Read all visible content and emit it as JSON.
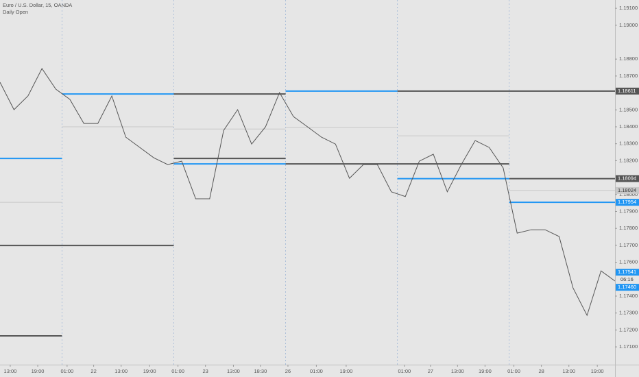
{
  "chart_data": {
    "type": "line",
    "title": "Euro / U.S. Dollar, 15, OANDA",
    "subtitle": "Daily Open",
    "x": [
      0,
      3,
      6,
      9,
      12,
      15,
      18,
      21,
      24,
      27,
      30,
      33,
      36,
      39,
      42,
      45,
      48,
      51,
      54,
      57,
      60,
      63,
      66,
      69,
      72,
      75,
      78,
      81,
      84,
      87,
      90,
      93,
      96,
      99,
      102,
      105,
      108,
      111,
      114,
      117,
      120,
      123,
      126,
      129,
      132
    ],
    "series": [
      {
        "color": "#555555",
        "values": [
          1.18663,
          1.18501,
          1.18582,
          1.18744,
          1.18622,
          1.18562,
          1.1842,
          1.1842,
          1.18582,
          1.18339,
          1.18278,
          1.18217,
          1.18177,
          1.18197,
          1.17975,
          1.17975,
          1.18379,
          1.18501,
          1.18298,
          1.184,
          1.18602,
          1.1846,
          1.184,
          1.18339,
          1.18298,
          1.18096,
          1.18177,
          1.18177,
          1.18016,
          1.17988,
          1.18197,
          1.18238,
          1.18016,
          1.18177,
          1.18319,
          1.18278,
          1.18157,
          1.17772,
          1.17792,
          1.17792,
          1.17752,
          1.17448,
          1.17286,
          1.17549,
          1.17489
        ]
      }
    ],
    "xlim": [
      0,
      132
    ],
    "ylim": [
      1.16995,
      1.19149
    ],
    "xticks": [
      {
        "value": 2.2,
        "label": "13:00"
      },
      {
        "value": 8.1,
        "label": "19:00"
      },
      {
        "value": 14.4,
        "label": "01:00"
      },
      {
        "value": 20.1,
        "label": "22"
      },
      {
        "value": 26.0,
        "label": "13:00"
      },
      {
        "value": 32.1,
        "label": "19:00"
      },
      {
        "value": 38.2,
        "label": "01:00"
      },
      {
        "value": 44.1,
        "label": "23"
      },
      {
        "value": 50.1,
        "label": "13:00"
      },
      {
        "value": 55.9,
        "label": "18:30"
      },
      {
        "value": 61.8,
        "label": "26"
      },
      {
        "value": 67.9,
        "label": "01:00"
      },
      {
        "value": 74.3,
        "label": "19:00"
      },
      {
        "value": 86.8,
        "label": "01:00"
      },
      {
        "value": 92.4,
        "label": "27"
      },
      {
        "value": 98.2,
        "label": "13:00"
      },
      {
        "value": 104.1,
        "label": "19:00"
      },
      {
        "value": 110.3,
        "label": "01:00"
      },
      {
        "value": 116.2,
        "label": "28"
      },
      {
        "value": 122.1,
        "label": "13:00"
      },
      {
        "value": 128.2,
        "label": "19:00"
      }
    ],
    "yticks": [
      {
        "value": 1.191,
        "label": "1.19100"
      },
      {
        "value": 1.19,
        "label": "1.19000"
      },
      {
        "value": 1.188,
        "label": "1.18800"
      },
      {
        "value": 1.187,
        "label": "1.18700"
      },
      {
        "value": 1.185,
        "label": "1.18500"
      },
      {
        "value": 1.184,
        "label": "1.18400"
      },
      {
        "value": 1.183,
        "label": "1.18300"
      },
      {
        "value": 1.182,
        "label": "1.18200"
      },
      {
        "value": 1.18,
        "label": "1.18000"
      },
      {
        "value": 1.179,
        "label": "1.17900"
      },
      {
        "value": 1.178,
        "label": "1.17800"
      },
      {
        "value": 1.177,
        "label": "1.17700"
      },
      {
        "value": 1.176,
        "label": "1.17600"
      },
      {
        "value": 1.174,
        "label": "1.17400"
      },
      {
        "value": 1.173,
        "label": "1.17300"
      },
      {
        "value": 1.172,
        "label": "1.17200"
      },
      {
        "value": 1.171,
        "label": "1.17100"
      }
    ],
    "session_lines": [
      13.3,
      37.3,
      61.3,
      85.3,
      109.3
    ],
    "levels": [
      {
        "color": "#c8c8c8",
        "x": [
          0,
          13.3
        ],
        "value": 1.17954
      },
      {
        "color": "#c8c8c8",
        "x": [
          13.3,
          37.3
        ],
        "value": 1.184
      },
      {
        "color": "#c8c8c8",
        "x": [
          37.3,
          61.3
        ],
        "value": 1.18387
      },
      {
        "color": "#c8c8c8",
        "x": [
          61.3,
          85.3
        ],
        "value": 1.18396
      },
      {
        "color": "#c8c8c8",
        "x": [
          85.3,
          109.3
        ],
        "value": 1.18347
      },
      {
        "color": "#c8c8c8",
        "x": [
          109.3,
          132
        ],
        "value": 1.18024
      },
      {
        "color": "#555555",
        "x": [
          0,
          13.3
        ],
        "value": 1.17165
      },
      {
        "color": "#555555",
        "x": [
          0,
          37.3
        ],
        "value": 1.17699
      },
      {
        "color": "#555555",
        "x": [
          37.3,
          61.3
        ],
        "value": 1.18594
      },
      {
        "color": "#555555",
        "x": [
          37.3,
          61.3
        ],
        "value": 1.18213
      },
      {
        "color": "#555555",
        "x": [
          61.3,
          109.3
        ],
        "value": 1.18181
      },
      {
        "color": "#555555",
        "x": [
          85.3,
          132
        ],
        "value": 1.18611
      },
      {
        "color": "#555555",
        "x": [
          109.3,
          132
        ],
        "value": 1.18094
      },
      {
        "color": "#2196f3",
        "x": [
          0,
          13.3
        ],
        "value": 1.18213
      },
      {
        "color": "#2196f3",
        "x": [
          13.3,
          37.3
        ],
        "value": 1.18594
      },
      {
        "color": "#2196f3",
        "x": [
          37.3,
          61.3
        ],
        "value": 1.18181
      },
      {
        "color": "#2196f3",
        "x": [
          61.3,
          85.3
        ],
        "value": 1.18611
      },
      {
        "color": "#2196f3",
        "x": [
          85.3,
          109.3
        ],
        "value": 1.18094
      },
      {
        "color": "#2196f3",
        "x": [
          109.3,
          132
        ],
        "value": 1.17954
      }
    ],
    "price_labels": [
      {
        "value": 1.18611,
        "label": "1.18611",
        "color": "#555555"
      },
      {
        "value": 1.18094,
        "label": "1.18094",
        "color": "#555555"
      },
      {
        "value": 1.18024,
        "label": "1.18024",
        "color": "#c8c8c8"
      },
      {
        "value": 1.17954,
        "label": "1.17954",
        "color": "#2196f3"
      },
      {
        "value": 1.17541,
        "label": "1.17541",
        "color": "#2196f3"
      },
      {
        "value": 1.1746,
        "label": "1.17460",
        "color": "#2196f3"
      }
    ],
    "countdown": "06:16"
  }
}
